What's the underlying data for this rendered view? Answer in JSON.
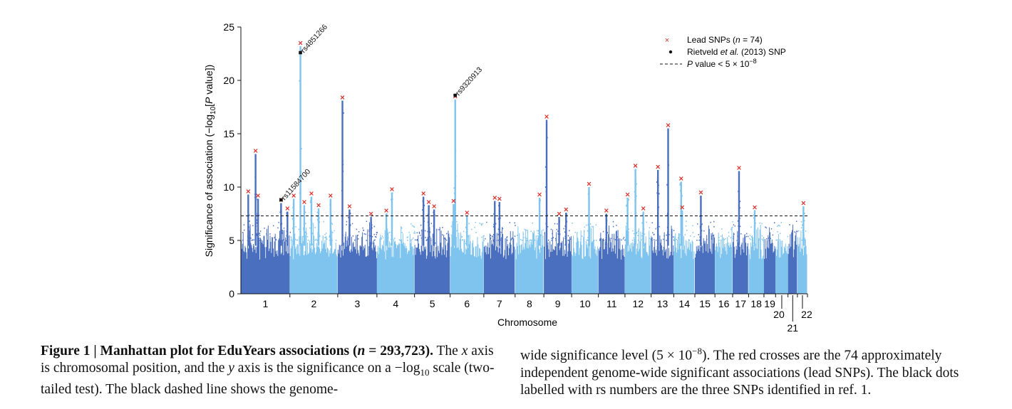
{
  "chart_data": {
    "type": "scatter",
    "subtype": "manhattan",
    "xlabel": "Chromosome",
    "ylabel_parts": [
      "Significance of association (−log",
      "10",
      "[",
      "P",
      " value])"
    ],
    "ylim": [
      0,
      25
    ],
    "yticks": [
      0,
      5,
      10,
      15,
      20,
      25
    ],
    "threshold": 7.3,
    "chromosomes": [
      "1",
      "2",
      "3",
      "4",
      "5",
      "6",
      "7",
      "8",
      "9",
      "10",
      "11",
      "12",
      "13",
      "14",
      "15",
      "16",
      "17",
      "18",
      "19",
      "20",
      "21",
      "22"
    ],
    "chromosome_colors": [
      "#4a6fbf",
      "#7fc4ee"
    ],
    "peaks": [
      {
        "chr": "1",
        "pos": 0.15,
        "value": 9.6
      },
      {
        "chr": "1",
        "pos": 0.3,
        "value": 13.4
      },
      {
        "chr": "1",
        "pos": 0.35,
        "value": 9.2
      },
      {
        "chr": "1",
        "pos": 0.82,
        "value": 8.8
      },
      {
        "chr": "1",
        "pos": 0.95,
        "value": 8.0
      },
      {
        "chr": "2",
        "pos": 0.08,
        "value": 9.2
      },
      {
        "chr": "2",
        "pos": 0.22,
        "value": 23.5
      },
      {
        "chr": "2",
        "pos": 0.3,
        "value": 8.6
      },
      {
        "chr": "2",
        "pos": 0.45,
        "value": 9.4
      },
      {
        "chr": "2",
        "pos": 0.6,
        "value": 8.3
      },
      {
        "chr": "2",
        "pos": 0.85,
        "value": 9.2
      },
      {
        "chr": "3",
        "pos": 0.12,
        "value": 18.4
      },
      {
        "chr": "3",
        "pos": 0.3,
        "value": 8.2
      },
      {
        "chr": "3",
        "pos": 0.85,
        "value": 7.5
      },
      {
        "chr": "4",
        "pos": 0.25,
        "value": 7.8
      },
      {
        "chr": "4",
        "pos": 0.4,
        "value": 9.8
      },
      {
        "chr": "5",
        "pos": 0.25,
        "value": 9.4
      },
      {
        "chr": "5",
        "pos": 0.4,
        "value": 8.6
      },
      {
        "chr": "5",
        "pos": 0.55,
        "value": 8.2
      },
      {
        "chr": "6",
        "pos": 0.1,
        "value": 8.7
      },
      {
        "chr": "6",
        "pos": 0.15,
        "value": 18.5
      },
      {
        "chr": "6",
        "pos": 0.5,
        "value": 7.6
      },
      {
        "chr": "7",
        "pos": 0.35,
        "value": 9.0
      },
      {
        "chr": "7",
        "pos": 0.5,
        "value": 8.9
      },
      {
        "chr": "8",
        "pos": 0.85,
        "value": 9.3
      },
      {
        "chr": "9",
        "pos": 0.1,
        "value": 16.6
      },
      {
        "chr": "9",
        "pos": 0.55,
        "value": 7.5
      },
      {
        "chr": "9",
        "pos": 0.8,
        "value": 7.9
      },
      {
        "chr": "10",
        "pos": 0.65,
        "value": 10.3
      },
      {
        "chr": "11",
        "pos": 0.3,
        "value": 7.8
      },
      {
        "chr": "12",
        "pos": 0.1,
        "value": 9.3
      },
      {
        "chr": "12",
        "pos": 0.4,
        "value": 12.0
      },
      {
        "chr": "12",
        "pos": 0.7,
        "value": 8.0
      },
      {
        "chr": "13",
        "pos": 0.3,
        "value": 11.9
      },
      {
        "chr": "13",
        "pos": 0.75,
        "value": 15.8
      },
      {
        "chr": "14",
        "pos": 0.35,
        "value": 10.8
      },
      {
        "chr": "14",
        "pos": 0.4,
        "value": 8.1
      },
      {
        "chr": "15",
        "pos": 0.3,
        "value": 9.5
      },
      {
        "chr": "17",
        "pos": 0.4,
        "value": 11.8
      },
      {
        "chr": "18",
        "pos": 0.4,
        "value": 8.1
      },
      {
        "chr": "22",
        "pos": 0.6,
        "value": 8.5
      }
    ],
    "labelled_snps": [
      {
        "name": "rs4851266",
        "chr": "2",
        "pos": 0.22,
        "value": 22.6
      },
      {
        "name": "rs9320913",
        "chr": "6",
        "pos": 0.15,
        "value": 18.6
      },
      {
        "name": "rs11584700",
        "chr": "1",
        "pos": 0.82,
        "value": 8.8
      }
    ],
    "legend": {
      "placement": "top-right",
      "lead_prefix": "Lead SNPs (",
      "lead_n": "n",
      "lead_suffix": " = 74)",
      "rietveld_prefix": "Rietveld ",
      "rietveld_italic": "et al.",
      "rietveld_suffix": " (2013) SNP",
      "pvalue_italic": "P",
      "pvalue_text": " value < 5 × 10",
      "pvalue_exp": "−8"
    }
  },
  "caption": {
    "title": "Figure 1 | Manhattan plot for EduYears associations (",
    "title_n": "n",
    "title_end": " = 293,723).",
    "l1a": " The ",
    "l1x": "x",
    "l1b": " axis is chromosomal position, and the ",
    "l1y": "y",
    "l1c": " axis is the significance on a −log",
    "l1sub": "10",
    "l1d": " scale (two-tailed test). The black dashed line shows the genome-",
    "r1": "wide significance level (5 × 10",
    "r1sup": "−8",
    "r1b": "). The red crosses are the 74 approximately independent genome-wide significant associations (lead SNPs). The black dots labelled with rs numbers are the three SNPs identified in ref. 1."
  }
}
